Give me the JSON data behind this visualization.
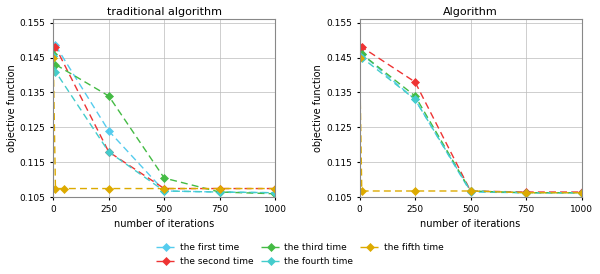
{
  "left_title": "traditional algorithm",
  "right_title": "Algorithm",
  "xlabel": "number of iterations",
  "ylabel": "objective function",
  "xlim": [
    0,
    1000
  ],
  "ylim": [
    0.105,
    0.156
  ],
  "yticks": [
    0.105,
    0.115,
    0.125,
    0.135,
    0.145,
    0.155
  ],
  "xticks": [
    0,
    250,
    500,
    750,
    1000
  ],
  "left_series": {
    "first": {
      "x": [
        0,
        10,
        250,
        500,
        750,
        1000
      ],
      "y": [
        0.1455,
        0.1485,
        0.124,
        0.1068,
        0.1065,
        0.1063
      ],
      "color": "#55CCEE",
      "marker": "D"
    },
    "second": {
      "x": [
        0,
        10,
        250,
        500,
        750,
        1000
      ],
      "y": [
        0.148,
        0.148,
        0.118,
        0.1075,
        0.1075,
        0.1075
      ],
      "color": "#EE3333",
      "marker": "D"
    },
    "third": {
      "x": [
        0,
        10,
        250,
        500,
        750,
        1000
      ],
      "y": [
        0.146,
        0.143,
        0.134,
        0.1105,
        0.1065,
        0.106
      ],
      "color": "#44BB44",
      "marker": "D"
    },
    "fourth": {
      "x": [
        0,
        10,
        250,
        500,
        750,
        1000
      ],
      "y": [
        0.1455,
        0.141,
        0.118,
        0.1068,
        0.1065,
        0.1063
      ],
      "color": "#44CCCC",
      "marker": "D"
    },
    "fifth": {
      "x": [
        0,
        10,
        50,
        250,
        500,
        750,
        1000
      ],
      "y": [
        0.145,
        0.1075,
        0.1075,
        0.1075,
        0.1075,
        0.1075,
        0.1075
      ],
      "color": "#DDAA00",
      "marker": "D"
    }
  },
  "right_series": {
    "first": {
      "x": [
        0,
        10,
        250,
        500,
        750,
        1000
      ],
      "y": [
        0.1455,
        0.146,
        0.133,
        0.1065,
        0.1063,
        0.1063
      ],
      "color": "#55CCEE",
      "marker": "D"
    },
    "second": {
      "x": [
        0,
        10,
        250,
        500,
        750,
        1000
      ],
      "y": [
        0.148,
        0.148,
        0.138,
        0.1068,
        0.1065,
        0.1065
      ],
      "color": "#EE3333",
      "marker": "D"
    },
    "third": {
      "x": [
        0,
        10,
        250,
        500,
        750,
        1000
      ],
      "y": [
        0.1455,
        0.146,
        0.134,
        0.1068,
        0.1063,
        0.1063
      ],
      "color": "#44BB44",
      "marker": "D"
    },
    "fourth": {
      "x": [
        0,
        10,
        250,
        500,
        750,
        1000
      ],
      "y": [
        0.1455,
        0.145,
        0.133,
        0.1068,
        0.1063,
        0.1063
      ],
      "color": "#44CCCC",
      "marker": "D"
    },
    "fifth": {
      "x": [
        0,
        10,
        250,
        500,
        750,
        1000
      ],
      "y": [
        0.145,
        0.1068,
        0.1068,
        0.1068,
        0.1063,
        0.1063
      ],
      "color": "#DDAA00",
      "marker": "D"
    }
  },
  "legend_labels": [
    "the first time",
    "the second time",
    "the third time",
    "the fourth time",
    "the fifth time"
  ],
  "legend_colors": [
    "#55CCEE",
    "#EE3333",
    "#44BB44",
    "#44CCCC",
    "#DDAA00"
  ],
  "background_color": "#FFFFFF",
  "grid_color": "#BBBBBB"
}
